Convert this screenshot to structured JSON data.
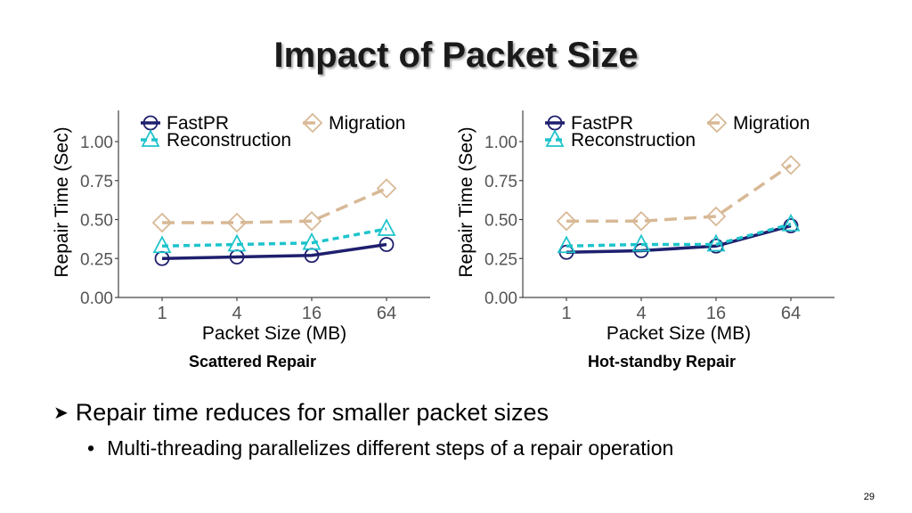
{
  "slide": {
    "title": "Impact of Packet Size",
    "bullet_main": "Repair time reduces for smaller packet sizes",
    "bullet_sub": "Multi-threading parallelizes different steps of a repair operation",
    "page_number": "29",
    "bullet_arrow_icon": "arrow-bullet",
    "sub_bullet_icon": "dot-bullet"
  },
  "chart_data": [
    {
      "type": "line",
      "caption": "Scattered Repair",
      "xlabel": "Packet Size (MB)",
      "ylabel": "Repair Time (Sec)",
      "categories": [
        "1",
        "4",
        "16",
        "64"
      ],
      "yticks": [
        "0.00",
        "0.25",
        "0.50",
        "0.75",
        "1.00"
      ],
      "ylim": [
        0,
        1.2
      ],
      "grid": false,
      "legend_position": "top",
      "series": [
        {
          "name": "FastPR",
          "values": [
            0.25,
            0.26,
            0.27,
            0.34
          ],
          "color": "#1f1f6e",
          "dash": "solid",
          "marker": "circle"
        },
        {
          "name": "Migration",
          "values": [
            0.48,
            0.48,
            0.49,
            0.7
          ],
          "color": "#d8b996",
          "dash": "long",
          "marker": "diamond"
        },
        {
          "name": "Reconstruction",
          "values": [
            0.33,
            0.34,
            0.35,
            0.44
          ],
          "color": "#1ec4cc",
          "dash": "short",
          "marker": "triangle"
        }
      ]
    },
    {
      "type": "line",
      "caption": "Hot-standby Repair",
      "xlabel": "Packet Size (MB)",
      "ylabel": "Repair Time (Sec)",
      "categories": [
        "1",
        "4",
        "16",
        "64"
      ],
      "yticks": [
        "0.00",
        "0.25",
        "0.50",
        "0.75",
        "1.00"
      ],
      "ylim": [
        0,
        1.2
      ],
      "grid": false,
      "legend_position": "top",
      "series": [
        {
          "name": "FastPR",
          "values": [
            0.29,
            0.3,
            0.33,
            0.46
          ],
          "color": "#1f1f6e",
          "dash": "solid",
          "marker": "circle"
        },
        {
          "name": "Migration",
          "values": [
            0.49,
            0.49,
            0.52,
            0.85
          ],
          "color": "#d8b996",
          "dash": "long",
          "marker": "diamond"
        },
        {
          "name": "Reconstruction",
          "values": [
            0.33,
            0.34,
            0.34,
            0.47
          ],
          "color": "#1ec4cc",
          "dash": "short",
          "marker": "triangle"
        }
      ]
    }
  ]
}
